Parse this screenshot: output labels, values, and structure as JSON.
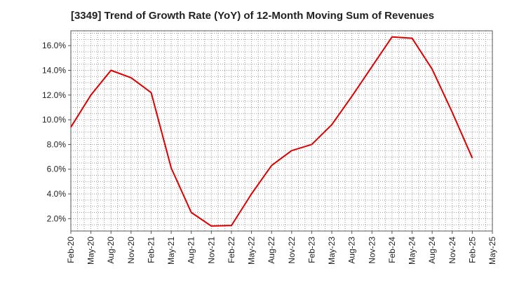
{
  "chart_data": {
    "type": "line",
    "title": "[3349]  Trend of Growth Rate (YoY) of 12-Month Moving Sum of Revenues",
    "xlabel": "",
    "ylabel": "",
    "x": [
      "Feb-20",
      "May-20",
      "Aug-20",
      "Nov-20",
      "Feb-21",
      "May-21",
      "Aug-21",
      "Nov-21",
      "Feb-22",
      "May-22",
      "Aug-22",
      "Nov-22",
      "Feb-23",
      "May-23",
      "Aug-23",
      "Nov-23",
      "Feb-24",
      "May-24",
      "Aug-24",
      "Nov-24",
      "Feb-25"
    ],
    "x_tick_labels": [
      "Feb-20",
      "May-20",
      "Aug-20",
      "Nov-20",
      "Feb-21",
      "May-21",
      "Aug-21",
      "Nov-21",
      "Feb-22",
      "May-22",
      "Aug-22",
      "Nov-22",
      "Feb-23",
      "May-23",
      "Aug-23",
      "Nov-23",
      "Feb-24",
      "May-24",
      "Aug-24",
      "Nov-24",
      "Feb-25",
      "May-25"
    ],
    "y_ticks": [
      2.0,
      4.0,
      6.0,
      8.0,
      10.0,
      12.0,
      14.0,
      16.0
    ],
    "y_tick_labels": [
      "2.0%",
      "4.0%",
      "6.0%",
      "8.0%",
      "10.0%",
      "12.0%",
      "14.0%",
      "16.0%"
    ],
    "ylim": [
      1.0,
      17.2
    ],
    "grid": true,
    "series": [
      {
        "color": "#dd0000",
        "values": [
          9.4,
          12.0,
          14.0,
          13.4,
          12.2,
          6.1,
          2.5,
          1.4,
          1.45,
          4.0,
          6.3,
          7.5,
          8.0,
          9.6,
          11.9,
          14.3,
          16.7,
          16.6,
          14.1,
          10.6,
          6.9
        ]
      }
    ]
  }
}
